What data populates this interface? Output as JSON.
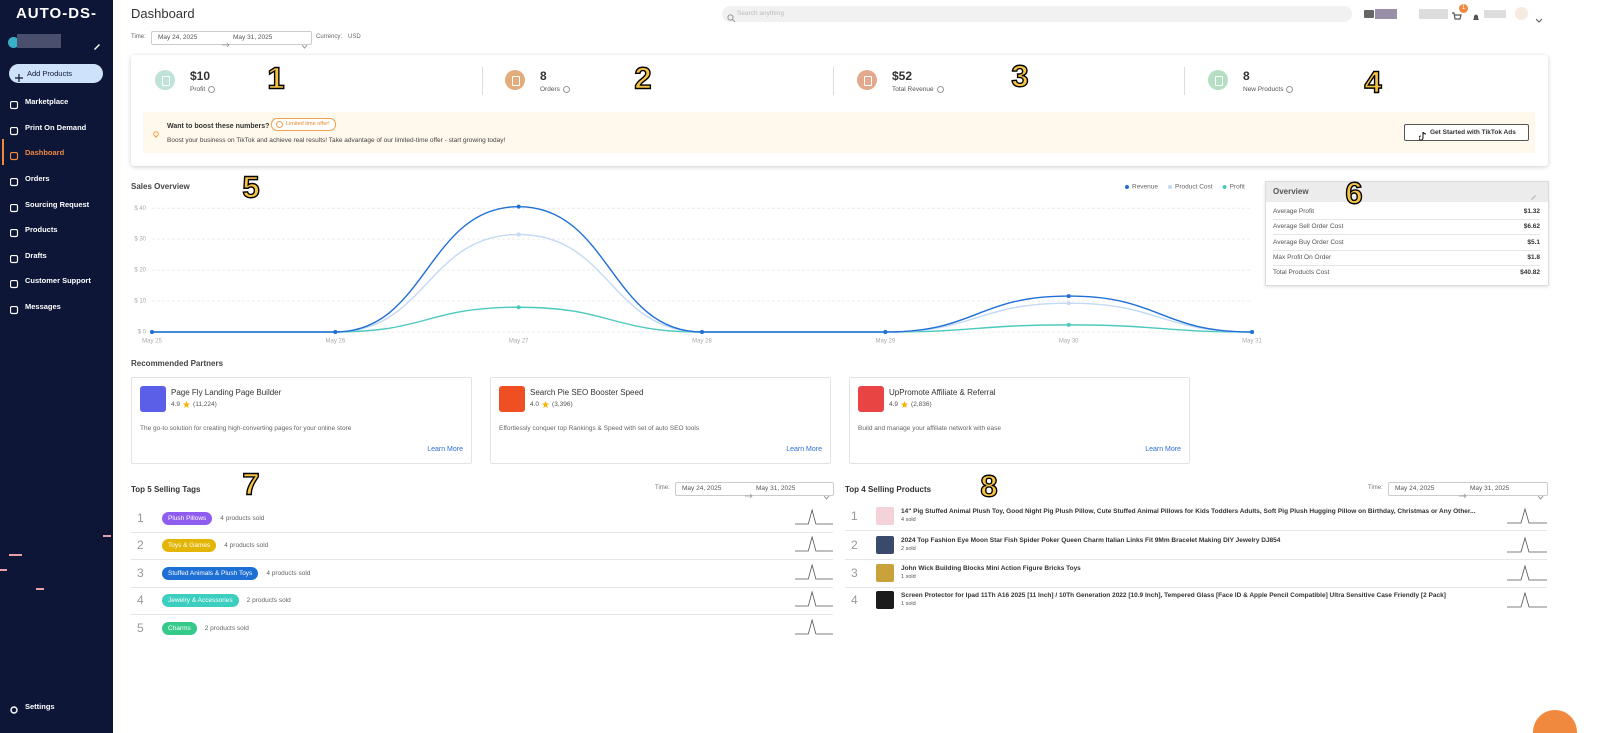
{
  "sidebar": {
    "logo": "AUTO-DS-",
    "add_products": "Add Products",
    "nav": [
      "Marketplace",
      "Print On Demand",
      "Dashboard",
      "Orders",
      "Sourcing Request",
      "Products",
      "Drafts",
      "Customer Support",
      "Messages"
    ],
    "settings": "Settings"
  },
  "header": {
    "title": "Dashboard",
    "search": "Search anything",
    "badge": "1"
  },
  "filters": {
    "time_label": "Time:",
    "start": "May 24, 2025",
    "end": "May 31, 2025",
    "currency_label": "Currency:",
    "currency": "USD"
  },
  "stats": [
    {
      "value": "$10",
      "label": "Profit"
    },
    {
      "value": "8",
      "label": "Orders"
    },
    {
      "value": "$52",
      "label": "Total Revenue"
    },
    {
      "value": "8",
      "label": "New Products"
    }
  ],
  "promo": {
    "question": "Want to boost these numbers?",
    "badge": "Limited time offer!",
    "text": "Boost your business on TikTok and achieve real results! Take advantage of our limited-time offer - start growing today!",
    "button": "Get Started with TikTok Ads"
  },
  "chart_data": {
    "type": "line",
    "title": "Sales Overview",
    "categories": [
      "May 25",
      "May 26",
      "May 27",
      "May 28",
      "May 29",
      "May 30",
      "May 31"
    ],
    "series": [
      {
        "name": "Revenue",
        "color": "#1f6fd6",
        "values": [
          0,
          0,
          40.5,
          0,
          0,
          11.6,
          0
        ]
      },
      {
        "name": "Product Cost",
        "color": "#c3d9f5",
        "values": [
          0,
          0,
          31.5,
          0,
          0,
          9.3,
          0
        ]
      },
      {
        "name": "Profit",
        "color": "#4cc9bd",
        "values": [
          0,
          0,
          8,
          0,
          0,
          2.3,
          0
        ]
      }
    ],
    "ylim": [
      0,
      42
    ],
    "yticks": [
      {
        "value": 0,
        "label": "$ 0"
      },
      {
        "value": 10,
        "label": "$ 10"
      },
      {
        "value": 20,
        "label": "$ 20"
      },
      {
        "value": 30,
        "label": "$ 30"
      },
      {
        "value": 40,
        "label": "$ 40"
      }
    ],
    "grid": true
  },
  "overview": {
    "title": "Overview",
    "rows": [
      {
        "label": "Average Profit",
        "value": "$1.32"
      },
      {
        "label": "Average Sell Order Cost",
        "value": "$6.62"
      },
      {
        "label": "Average Buy Order Cost",
        "value": "$5.1"
      },
      {
        "label": "Max Profit On Order",
        "value": "$1.8"
      },
      {
        "label": "Total Products Cost",
        "value": "$40.82"
      }
    ]
  },
  "partners": {
    "title": "Recommended Partners",
    "items": [
      {
        "name": "Page Fly Landing Page Builder",
        "rating": "4.9",
        "reviews": "(11,224)",
        "description": "The go-to solution for creating high-converting pages for your online store",
        "link": "Learn More"
      },
      {
        "name": "Search Pie SEO Booster Speed",
        "rating": "4.0",
        "reviews": "(3,396)",
        "description": "Effortlessly conquer top Rankings & Speed with set of auto SEO tools",
        "link": "Learn More"
      },
      {
        "name": "UpPromote Affiliate & Referral",
        "rating": "4.9",
        "reviews": "(2,836)",
        "description": "Build and manage your affiliate network with ease",
        "link": "Learn More"
      }
    ]
  },
  "top_tags": {
    "title": "Top 5 Selling Tags",
    "time_label": "Time:",
    "start": "May 24, 2025",
    "end": "May 31, 2025",
    "items": [
      {
        "rank": "1",
        "tag": "Plush Pillows",
        "sold": "4 products sold",
        "color": "#8f5cf0"
      },
      {
        "rank": "2",
        "tag": "Toys & Games",
        "sold": "4 products sold",
        "color": "#e3b505"
      },
      {
        "rank": "3",
        "tag": "Stuffed Animals & Plush Toys",
        "sold": "4 products sold",
        "color": "#1d6fd6"
      },
      {
        "rank": "4",
        "tag": "Jewelry & Accessories",
        "sold": "2 products sold",
        "color": "#3ccfc0"
      },
      {
        "rank": "5",
        "tag": "Charms",
        "sold": "2 products sold",
        "color": "#35c98a"
      }
    ]
  },
  "top_products": {
    "title": "Top 4 Selling Products",
    "time_label": "Time:",
    "start": "May 24, 2025",
    "end": "May 31, 2025",
    "items": [
      {
        "rank": "1",
        "title": "14\" Pig Stuffed Animal Plush Toy, Good Night Pig Plush Pillow, Cute Stuffed Animal Pillows for Kids Toddlers Adults, Soft Pig Plush Hugging Pillow on Birthday, Christmas or Any Other...",
        "sold": "4 sold"
      },
      {
        "rank": "2",
        "title": "2024 Top Fashion Eye Moon Star Fish Spider Poker Queen Charm Italian Links Fit 9Mm Bracelet Making DIY Jewelry DJ854",
        "sold": "2 sold"
      },
      {
        "rank": "3",
        "title": "John Wick Building Blocks Mini Action Figure Bricks Toys",
        "sold": "1 sold"
      },
      {
        "rank": "4",
        "title": "Screen Protector for Ipad 11Th A16 2025 [11 Inch] / 10Th Generation 2022 [10.9 Inch], Tempered Glass [Face ID & Apple Pencil Compatible] Ultra Sensitive Case Friendly [2 Pack]",
        "sold": "1 sold"
      }
    ]
  },
  "annotations": [
    "1",
    "2",
    "3",
    "4",
    "5",
    "6",
    "7",
    "8"
  ]
}
